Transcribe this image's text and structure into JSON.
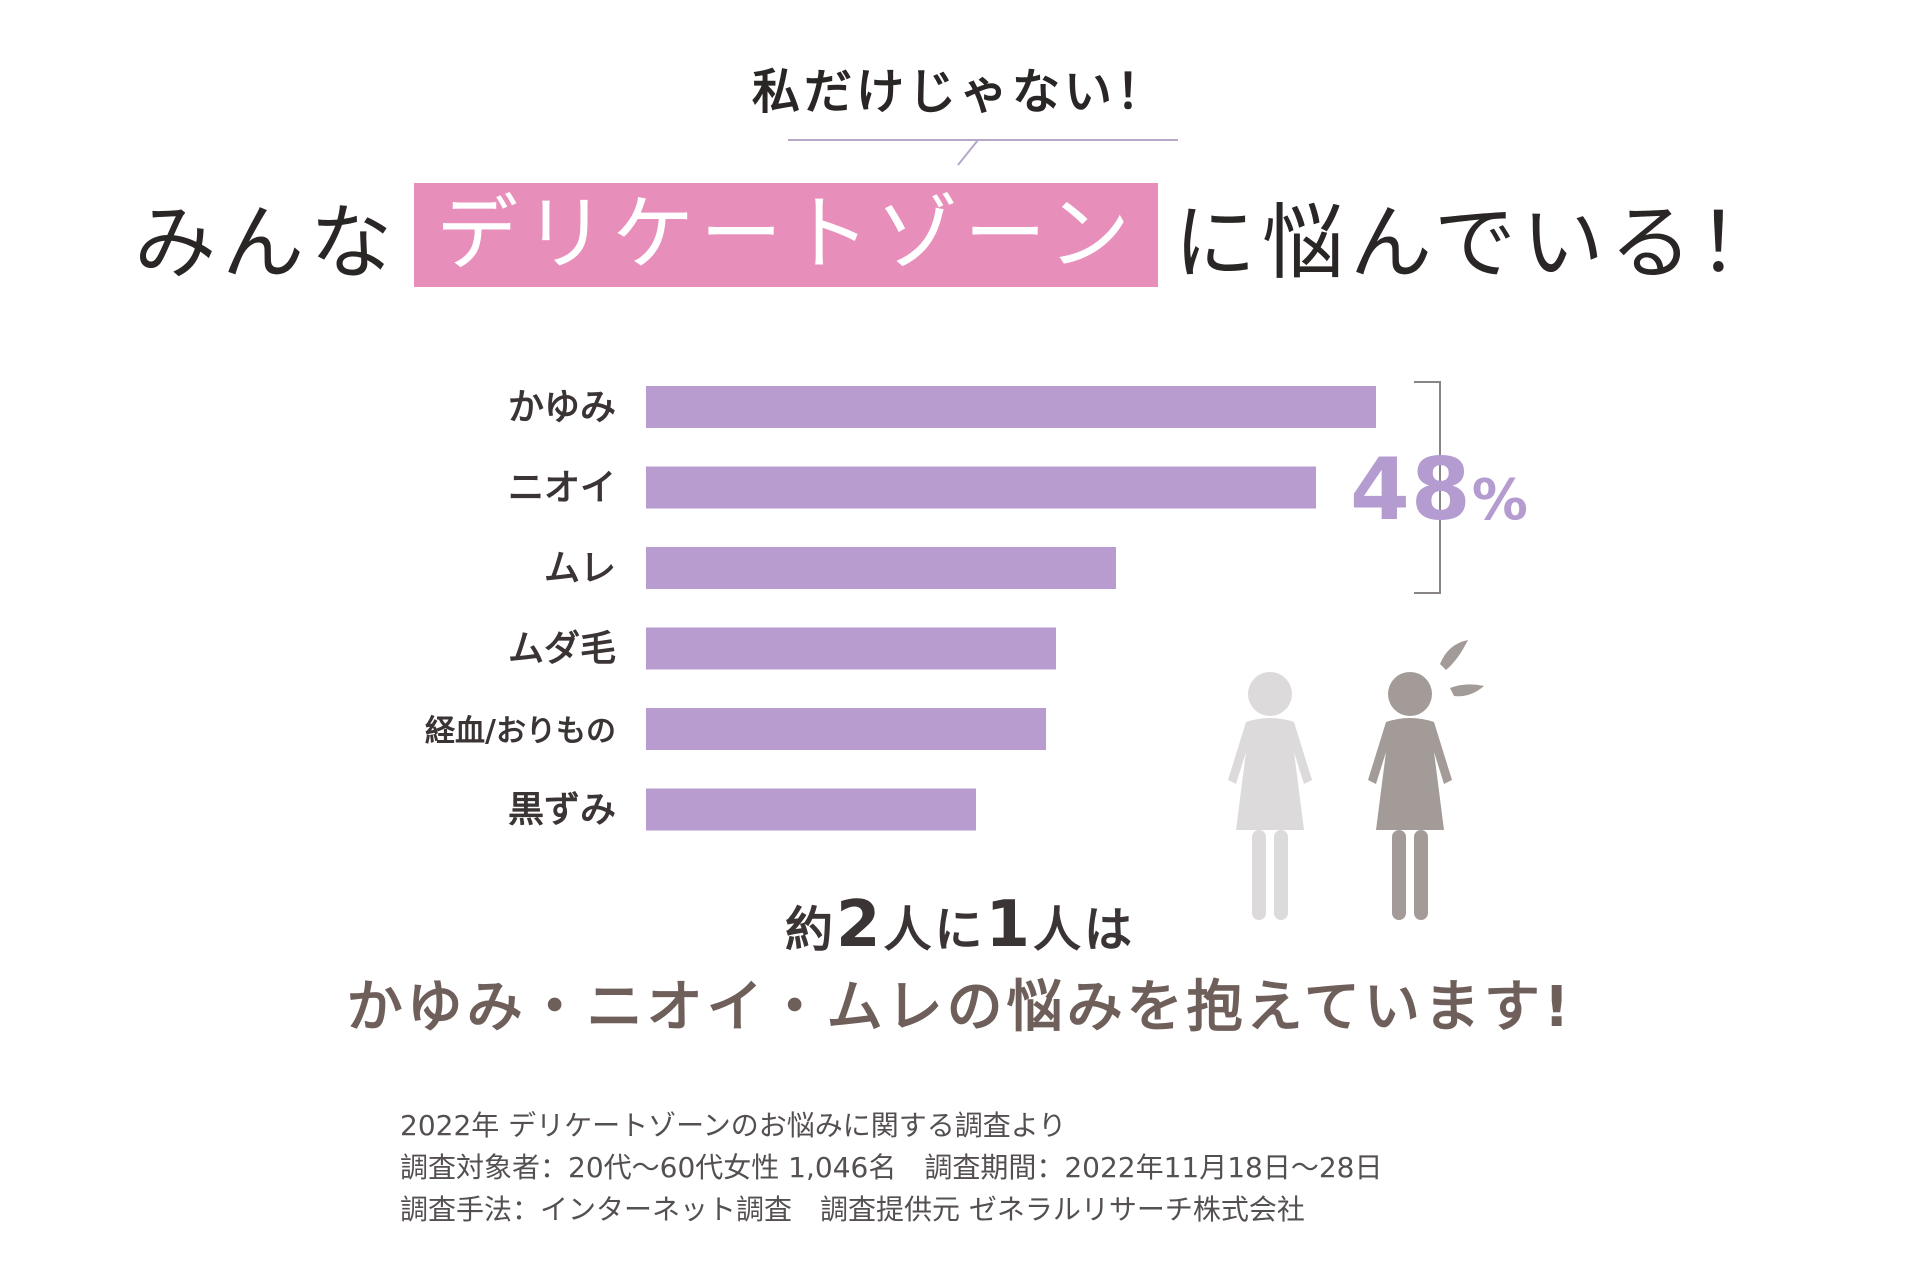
{
  "header": {
    "kicker": "私だけじゃない！",
    "headline_pre": "みんな",
    "headline_highlight": "デリケートゾーン",
    "headline_post": "に悩んでいる！"
  },
  "chart_data": {
    "type": "bar",
    "orientation": "horizontal",
    "categories": [
      "かゆみ",
      "ニオイ",
      "ムレ",
      "ムダ毛",
      "経血/おりもの",
      "黒ずみ"
    ],
    "values": [
      73,
      67,
      47,
      41,
      40,
      33
    ],
    "xlim": [
      0,
      100
    ],
    "bar_color": "#b89cd0",
    "callout": {
      "value": "48",
      "unit": "%",
      "spans_categories": [
        "かゆみ",
        "ニオイ",
        "ムレ"
      ]
    }
  },
  "message": {
    "line1_parts": [
      "約",
      "2",
      "人に",
      "1",
      "人は"
    ],
    "line2": "かゆみ・ニオイ・ムレの悩みを抱えています!"
  },
  "source_lines": [
    "2022年 デリケートゾーンのお悩みに関する調査より",
    "調査対象者：20代〜60代女性 1,046名　調査期間：2022年11月18日〜28日",
    "調査手法：インターネット調査　調査提供元 ゼネラルリサーチ株式会社"
  ],
  "illustration": {
    "icons": [
      "woman-icon-light",
      "woman-icon-dark-sweating"
    ],
    "colors": {
      "light": "#dcdada",
      "dark": "#a39b98"
    }
  },
  "colors": {
    "highlight": "#e88ebb",
    "bar": "#b89cd0",
    "accent_text": "#b49bd0",
    "message": "#6f5f5b"
  }
}
